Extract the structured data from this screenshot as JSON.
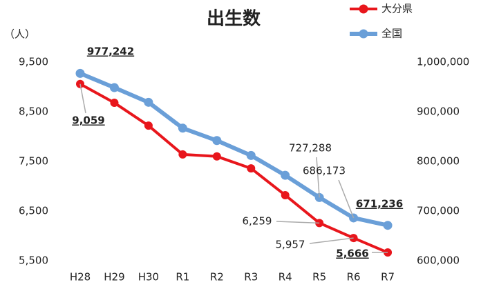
{
  "chart_data": {
    "type": "line",
    "title": "出生数",
    "y_label": "（人）",
    "categories": [
      "H28",
      "H29",
      "H30",
      "R1",
      "R2",
      "R3",
      "R4",
      "R5",
      "R6",
      "R7"
    ],
    "series": [
      {
        "name": "大分県",
        "color": "#e8161c",
        "axis": "y",
        "values": [
          9059,
          8680,
          8220,
          7640,
          7600,
          7360,
          6820,
          6259,
          5957,
          5666
        ],
        "value_labels": [
          "9,059",
          null,
          null,
          null,
          null,
          null,
          null,
          "6,259",
          "5,957",
          "5,666"
        ]
      },
      {
        "name": "全国",
        "color": "#6a9fd8",
        "axis": "y2",
        "values": [
          977242,
          948600,
          919000,
          867000,
          842000,
          812000,
          772000,
          727288,
          686173,
          671236
        ],
        "value_labels": [
          "977,242",
          null,
          null,
          null,
          null,
          null,
          null,
          "727,288",
          "686,173",
          "671,236"
        ]
      }
    ],
    "ylim": [
      5500,
      9500
    ],
    "yticks": [
      {
        "value": 5500,
        "label": "5,500"
      },
      {
        "value": 6500,
        "label": "6,500"
      },
      {
        "value": 7500,
        "label": "7,500"
      },
      {
        "value": 8500,
        "label": "8,500"
      },
      {
        "value": 9500,
        "label": "9,500"
      }
    ],
    "y2lim": [
      600000,
      1000000
    ],
    "y2ticks": [
      {
        "value": 600000,
        "label": "600,000"
      },
      {
        "value": 700000,
        "label": "700,000"
      },
      {
        "value": 800000,
        "label": "800,000"
      },
      {
        "value": 900000,
        "label": "900,000"
      },
      {
        "value": 1000000,
        "label": "1,000,000"
      }
    ],
    "legend": "top-right"
  }
}
